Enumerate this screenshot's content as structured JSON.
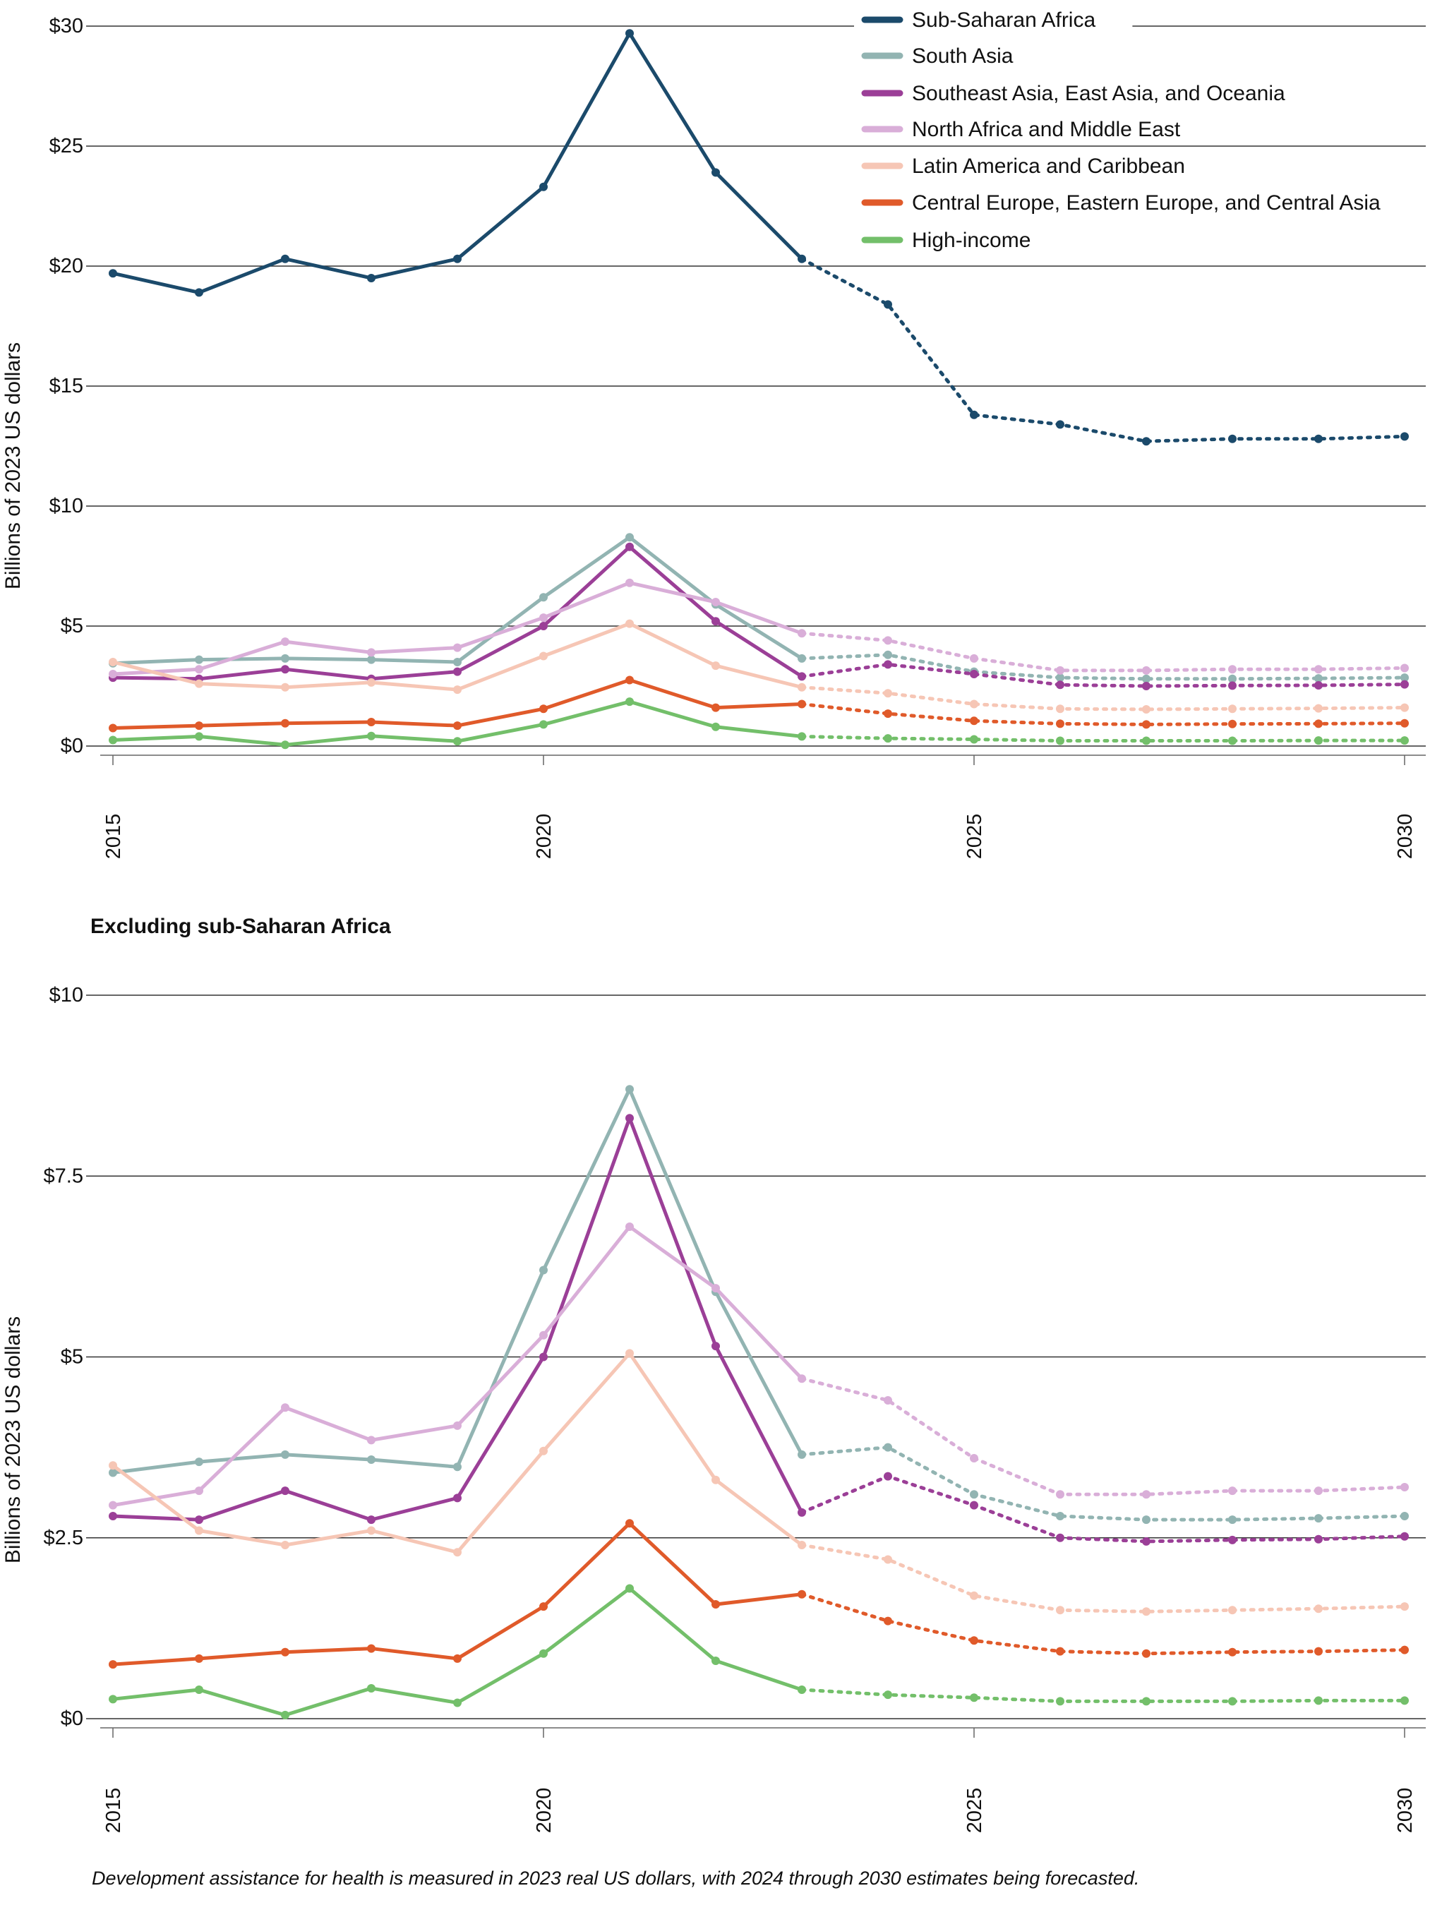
{
  "colors": {
    "Sub-Saharan Africa": "#1b4a6b",
    "South Asia": "#92b4b2",
    "Southeast Asia, East Asia, and Oceania": "#9b3f97",
    "North Africa and Middle East": "#d9aed8",
    "Latin America and Caribbean": "#f6c6b5",
    "Central Europe, Eastern Europe, and Central Asia": "#e05a2a",
    "High-income": "#73bf6a"
  },
  "legend": [
    "Sub-Saharan Africa",
    "South Asia",
    "Southeast Asia, East Asia, and Oceania",
    "North Africa and Middle East",
    "Latin America and Caribbean",
    "Central Europe, Eastern Europe, and Central Asia",
    "High-income"
  ],
  "chart_data": [
    {
      "type": "line",
      "title": "",
      "xlabel": "",
      "ylabel": "Billions of 2023 US dollars",
      "xlim": [
        2015,
        2030
      ],
      "ylim": [
        0,
        30
      ],
      "yticks": [
        0,
        5,
        10,
        15,
        20,
        25,
        30
      ],
      "ytick_labels": [
        "$0",
        "$5",
        "$10",
        "$15",
        "$20",
        "$25",
        "$30"
      ],
      "xticks": [
        2015,
        2020,
        2025,
        2030
      ],
      "xtick_labels": [
        "2015",
        "2020",
        "2025",
        "2030"
      ],
      "forecast_start": 2023,
      "grid": "horizontal",
      "legend_position": "top-right",
      "x": [
        2015,
        2016,
        2017,
        2018,
        2019,
        2020,
        2021,
        2022,
        2023,
        2024,
        2025,
        2026,
        2027,
        2028,
        2029,
        2030
      ],
      "series": [
        {
          "name": "Sub-Saharan Africa",
          "values": [
            19.7,
            18.9,
            20.3,
            19.5,
            20.3,
            23.3,
            29.7,
            23.9,
            20.3,
            18.4,
            13.8,
            13.4,
            12.7,
            12.8,
            12.8,
            12.9
          ]
        },
        {
          "name": "South Asia",
          "values": [
            3.45,
            3.6,
            3.65,
            3.6,
            3.5,
            6.2,
            8.7,
            5.9,
            3.65,
            3.8,
            3.1,
            2.85,
            2.8,
            2.8,
            2.82,
            2.85
          ]
        },
        {
          "name": "Southeast Asia, East Asia, and Oceania",
          "values": [
            2.85,
            2.8,
            3.2,
            2.8,
            3.1,
            5.0,
            8.3,
            5.2,
            2.9,
            3.4,
            3.0,
            2.55,
            2.5,
            2.52,
            2.53,
            2.57
          ]
        },
        {
          "name": "North Africa and Middle East",
          "values": [
            3.0,
            3.2,
            4.35,
            3.9,
            4.1,
            5.35,
            6.8,
            6.0,
            4.7,
            4.4,
            3.65,
            3.15,
            3.15,
            3.2,
            3.2,
            3.25
          ]
        },
        {
          "name": "Latin America and Caribbean",
          "values": [
            3.5,
            2.6,
            2.45,
            2.65,
            2.35,
            3.75,
            5.1,
            3.35,
            2.45,
            2.2,
            1.75,
            1.55,
            1.53,
            1.55,
            1.57,
            1.6
          ]
        },
        {
          "name": "Central Europe, Eastern Europe, and Central Asia",
          "values": [
            0.75,
            0.85,
            0.95,
            1.0,
            0.85,
            1.55,
            2.75,
            1.6,
            1.75,
            1.35,
            1.05,
            0.93,
            0.9,
            0.92,
            0.93,
            0.95
          ]
        },
        {
          "name": "High-income",
          "values": [
            0.25,
            0.4,
            0.05,
            0.42,
            0.2,
            0.9,
            1.85,
            0.8,
            0.4,
            0.32,
            0.28,
            0.22,
            0.22,
            0.22,
            0.23,
            0.23
          ]
        }
      ]
    },
    {
      "type": "line",
      "title": "Excluding sub-Saharan Africa",
      "xlabel": "",
      "ylabel": "Billions of 2023 US dollars",
      "xlim": [
        2015,
        2030
      ],
      "ylim": [
        0,
        10
      ],
      "yticks": [
        0,
        2.5,
        5,
        7.5,
        10
      ],
      "ytick_labels": [
        "$0",
        "$2.5",
        "$5",
        "$7.5",
        "$10"
      ],
      "xticks": [
        2015,
        2020,
        2025,
        2030
      ],
      "xtick_labels": [
        "2015",
        "2020",
        "2025",
        "2030"
      ],
      "forecast_start": 2023,
      "grid": "horizontal",
      "x": [
        2015,
        2016,
        2017,
        2018,
        2019,
        2020,
        2021,
        2022,
        2023,
        2024,
        2025,
        2026,
        2027,
        2028,
        2029,
        2030
      ],
      "series": [
        {
          "name": "South Asia",
          "values": [
            3.4,
            3.55,
            3.65,
            3.58,
            3.48,
            6.2,
            8.7,
            5.9,
            3.65,
            3.75,
            3.1,
            2.8,
            2.75,
            2.75,
            2.77,
            2.8
          ]
        },
        {
          "name": "Southeast Asia, East Asia, and Oceania",
          "values": [
            2.8,
            2.75,
            3.15,
            2.75,
            3.05,
            5.0,
            8.3,
            5.15,
            2.85,
            3.35,
            2.95,
            2.5,
            2.45,
            2.47,
            2.48,
            2.52
          ]
        },
        {
          "name": "North Africa and Middle East",
          "values": [
            2.95,
            3.15,
            4.3,
            3.85,
            4.05,
            5.3,
            6.8,
            5.95,
            4.7,
            4.4,
            3.6,
            3.1,
            3.1,
            3.15,
            3.15,
            3.2
          ]
        },
        {
          "name": "Latin America and Caribbean",
          "values": [
            3.5,
            2.6,
            2.4,
            2.6,
            2.3,
            3.7,
            5.05,
            3.3,
            2.4,
            2.2,
            1.7,
            1.5,
            1.48,
            1.5,
            1.52,
            1.55
          ]
        },
        {
          "name": "Central Europe, Eastern Europe, and Central Asia",
          "values": [
            0.75,
            0.83,
            0.92,
            0.97,
            0.83,
            1.55,
            2.7,
            1.58,
            1.72,
            1.35,
            1.08,
            0.93,
            0.9,
            0.92,
            0.93,
            0.95
          ]
        },
        {
          "name": "High-income",
          "values": [
            0.27,
            0.4,
            0.05,
            0.42,
            0.22,
            0.9,
            1.8,
            0.8,
            0.4,
            0.33,
            0.29,
            0.24,
            0.24,
            0.24,
            0.25,
            0.25
          ]
        }
      ]
    }
  ],
  "footnote": "Development assistance for health is measured in 2023 real US dollars, with 2024 through 2030 estimates being forecasted."
}
